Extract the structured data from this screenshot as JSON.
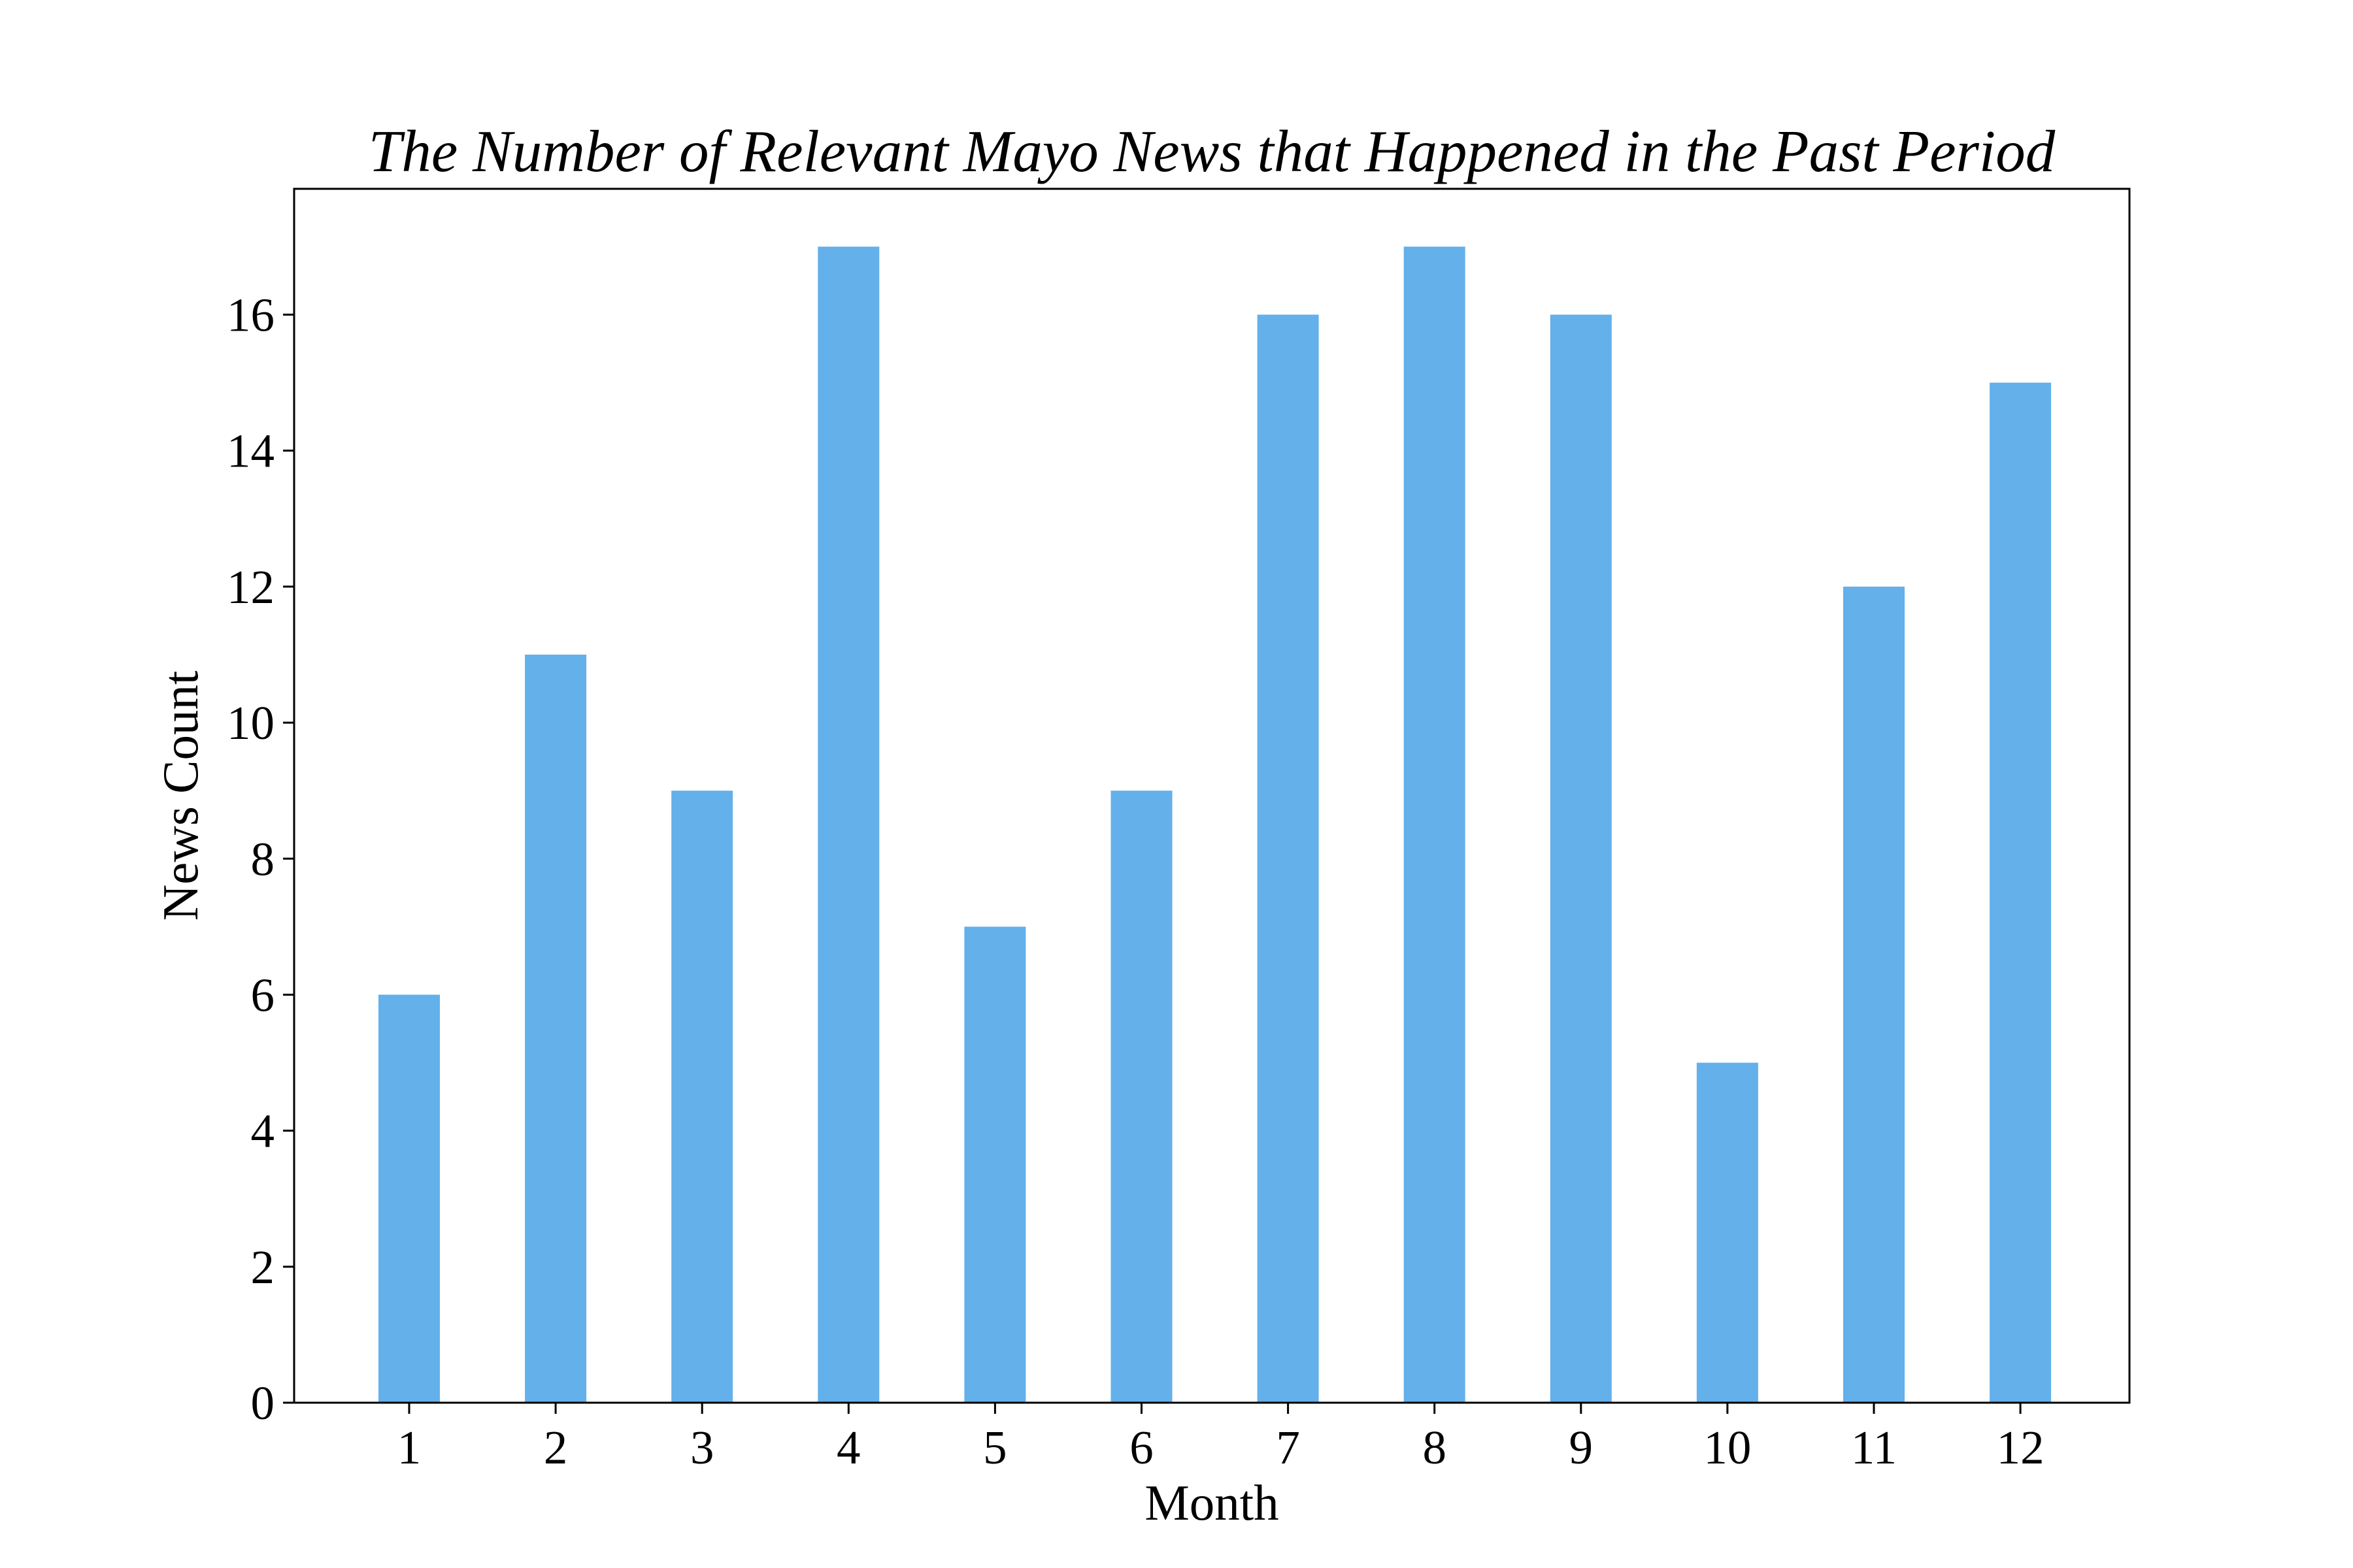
{
  "chart_data": {
    "type": "bar",
    "title": "The Number of Relevant Mayo News that Happened in the Past Period",
    "xlabel": "Month",
    "ylabel": "News Count",
    "categories": [
      "1",
      "2",
      "3",
      "4",
      "5",
      "6",
      "7",
      "8",
      "9",
      "10",
      "11",
      "12"
    ],
    "values": [
      6,
      11,
      9,
      17,
      7,
      9,
      16,
      17,
      16,
      5,
      12,
      15
    ],
    "ylim": [
      0,
      17.85
    ],
    "yticks": [
      "0",
      "2",
      "4",
      "6",
      "8",
      "10",
      "12",
      "14",
      "16"
    ],
    "grid": false,
    "legend": "none",
    "bar_color": "#63b0eb"
  }
}
